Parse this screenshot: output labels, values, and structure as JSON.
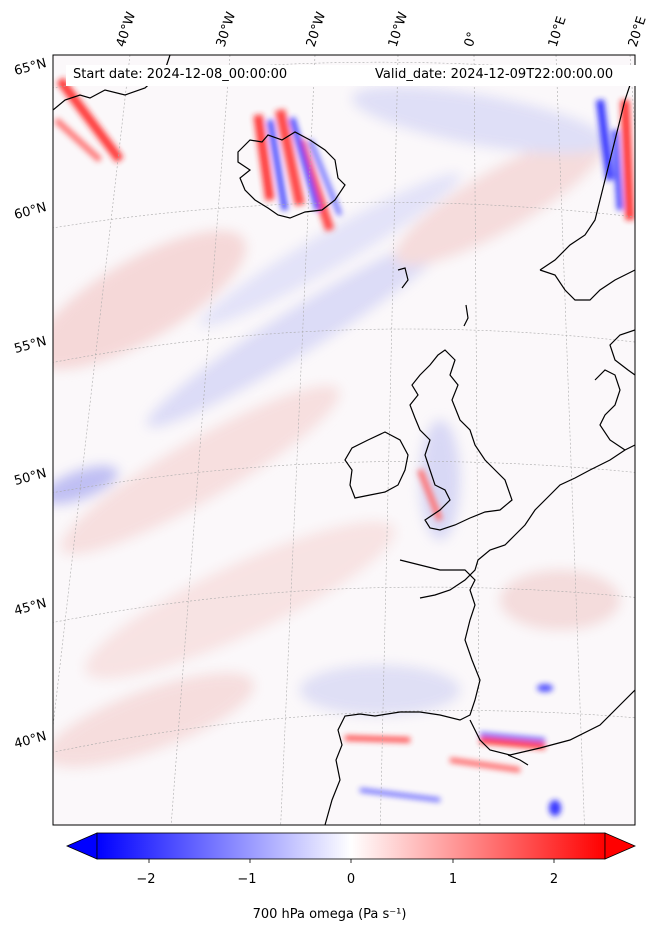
{
  "map": {
    "start_label": "Start date: 2024-12-08_00:00:00",
    "valid_label": "Valid_date: 2024-12-09T22:00:00.00",
    "lon_labels": [
      "40°W",
      "30°W",
      "20°W",
      "10°W",
      "0°",
      "10°E",
      "20°E"
    ],
    "lat_labels": [
      "65°N",
      "60°N",
      "55°N",
      "50°N",
      "45°N",
      "40°N"
    ],
    "variable": "700 hPa omega (Pa s⁻¹)",
    "colormap": [
      "#0000ff",
      "#ffffff",
      "#ff0000"
    ]
  },
  "colorbar": {
    "ticks": [
      "−2",
      "−1",
      "0",
      "1",
      "2"
    ],
    "range": [
      -2.6,
      2.6
    ]
  }
}
